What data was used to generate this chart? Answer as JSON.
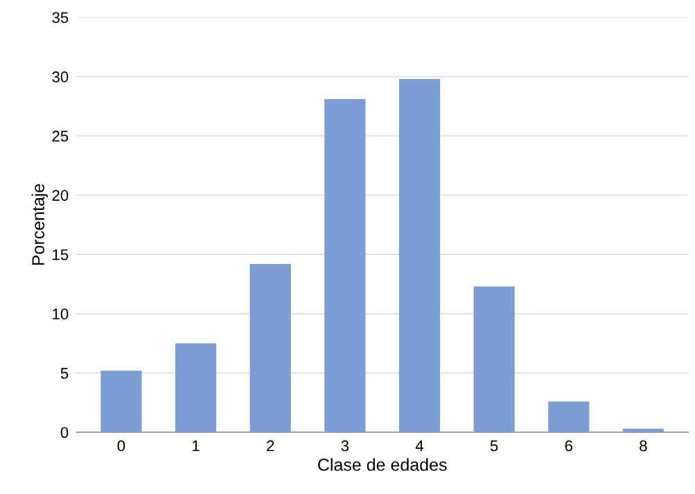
{
  "chart_data": {
    "type": "bar",
    "xlabel": "Clase de edades",
    "ylabel": "Porcentaje",
    "categories": [
      "0",
      "1",
      "2",
      "3",
      "4",
      "5",
      "6",
      "8"
    ],
    "values": [
      5.2,
      7.5,
      14.2,
      28.1,
      29.8,
      12.3,
      2.6,
      0.3
    ],
    "color": "#7b9ed6",
    "ylim": [
      0,
      35
    ],
    "yticks": [
      0,
      5,
      10,
      15,
      20,
      25,
      30,
      35
    ],
    "grid": "y"
  }
}
